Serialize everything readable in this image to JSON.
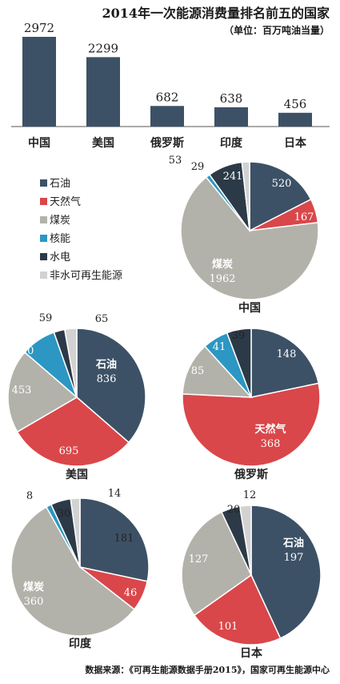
{
  "title": "2014年一次能源消费量排名前五的国家",
  "subtitle": "（单位：百万吨油当量）",
  "source": "数据来源：《可再生能源数据手册2015》，国家可再生能源中心",
  "colors": {
    "bar": "#3d5166",
    "oil": "#3d5166",
    "gas": "#d9474a",
    "coal": "#b3b2aa",
    "nuclear": "#2b97c2",
    "hydro": "#2c3a48",
    "renew": "#d2d2d2"
  },
  "chart_data": [
    {
      "type": "bar",
      "categories": [
        "中国",
        "美国",
        "俄罗斯",
        "印度",
        "日本"
      ],
      "values": [
        2972,
        2299,
        682,
        638,
        456
      ]
    },
    {
      "type": "pie",
      "legend": [
        "石油",
        "天然气",
        "煤炭",
        "核能",
        "水电",
        "非水可再生能源"
      ],
      "pies": [
        {
          "country": "中国",
          "slices": [
            {
              "name": "石油",
              "value": 520
            },
            {
              "name": "天然气",
              "value": 167
            },
            {
              "name": "煤炭",
              "value": 1962
            },
            {
              "name": "核能",
              "value": 29
            },
            {
              "name": "水电",
              "value": 241
            },
            {
              "name": "非水可再生能源",
              "value": 53
            }
          ]
        },
        {
          "country": "美国",
          "slices": [
            {
              "name": "石油",
              "value": 836
            },
            {
              "name": "天然气",
              "value": 695
            },
            {
              "name": "煤炭",
              "value": 453
            },
            {
              "name": "核能",
              "value": 190
            },
            {
              "name": "水电",
              "value": 59
            },
            {
              "name": "非水可再生能源",
              "value": 65
            }
          ]
        },
        {
          "country": "俄罗斯",
          "slices": [
            {
              "name": "石油",
              "value": 148
            },
            {
              "name": "天然气",
              "value": 368
            },
            {
              "name": "煤炭",
              "value": 85
            },
            {
              "name": "核能",
              "value": 41
            },
            {
              "name": "水电",
              "value": 39
            },
            {
              "name": "非水可再生能源",
              "value": 0
            }
          ]
        },
        {
          "country": "印度",
          "slices": [
            {
              "name": "石油",
              "value": 181
            },
            {
              "name": "天然气",
              "value": 46
            },
            {
              "name": "煤炭",
              "value": 360
            },
            {
              "name": "核能",
              "value": 8
            },
            {
              "name": "水电",
              "value": 30
            },
            {
              "name": "非水可再生能源",
              "value": 14
            }
          ]
        },
        {
          "country": "日本",
          "slices": [
            {
              "name": "石油",
              "value": 197
            },
            {
              "name": "天然气",
              "value": 101
            },
            {
              "name": "煤炭",
              "value": 127
            },
            {
              "name": "核能",
              "value": 0
            },
            {
              "name": "水电",
              "value": 20
            },
            {
              "name": "非水可再生能源",
              "value": 12
            }
          ]
        }
      ]
    }
  ]
}
